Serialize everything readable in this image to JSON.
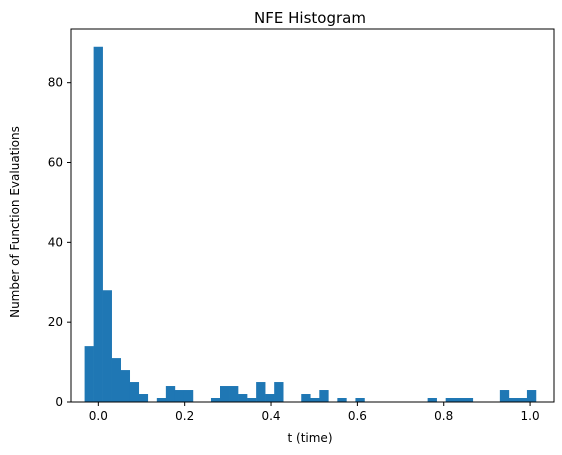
{
  "chart_data": {
    "type": "bar",
    "title": "NFE Histogram",
    "xlabel": "t (time)",
    "ylabel": "Number of Function Evaluations",
    "bar_color": "#1f77b4",
    "bin_width": 0.0209,
    "bins": [
      {
        "x": -0.0318,
        "y": 14
      },
      {
        "x": -0.0109,
        "y": 89
      },
      {
        "x": 0.01,
        "y": 28
      },
      {
        "x": 0.0309,
        "y": 11
      },
      {
        "x": 0.0518,
        "y": 8
      },
      {
        "x": 0.0727,
        "y": 5
      },
      {
        "x": 0.0936,
        "y": 2
      },
      {
        "x": 0.1355,
        "y": 1
      },
      {
        "x": 0.1564,
        "y": 4
      },
      {
        "x": 0.1773,
        "y": 3
      },
      {
        "x": 0.1982,
        "y": 3
      },
      {
        "x": 0.2609,
        "y": 1
      },
      {
        "x": 0.2818,
        "y": 4
      },
      {
        "x": 0.3027,
        "y": 4
      },
      {
        "x": 0.3236,
        "y": 2
      },
      {
        "x": 0.3445,
        "y": 1
      },
      {
        "x": 0.3655,
        "y": 5
      },
      {
        "x": 0.3864,
        "y": 2
      },
      {
        "x": 0.4073,
        "y": 5
      },
      {
        "x": 0.47,
        "y": 2
      },
      {
        "x": 0.4909,
        "y": 1
      },
      {
        "x": 0.5118,
        "y": 3
      },
      {
        "x": 0.5536,
        "y": 1
      },
      {
        "x": 0.5955,
        "y": 1
      },
      {
        "x": 0.7627,
        "y": 1
      },
      {
        "x": 0.8045,
        "y": 1
      },
      {
        "x": 0.8255,
        "y": 1
      },
      {
        "x": 0.8464,
        "y": 1
      },
      {
        "x": 0.93,
        "y": 3
      },
      {
        "x": 0.9509,
        "y": 1
      },
      {
        "x": 0.9718,
        "y": 1
      },
      {
        "x": 0.9927,
        "y": 3
      }
    ],
    "xlim": [
      -0.0633,
      1.0554
    ],
    "ylim": [
      0,
      93.45
    ],
    "xticks": [
      0.0,
      0.2,
      0.4,
      0.6,
      0.8,
      1.0
    ],
    "xtick_labels": [
      "0.0",
      "0.2",
      "0.4",
      "0.6",
      "0.8",
      "1.0"
    ],
    "yticks": [
      0,
      20,
      40,
      60,
      80
    ],
    "ytick_labels": [
      "0",
      "20",
      "40",
      "60",
      "80"
    ],
    "grid": false
  }
}
